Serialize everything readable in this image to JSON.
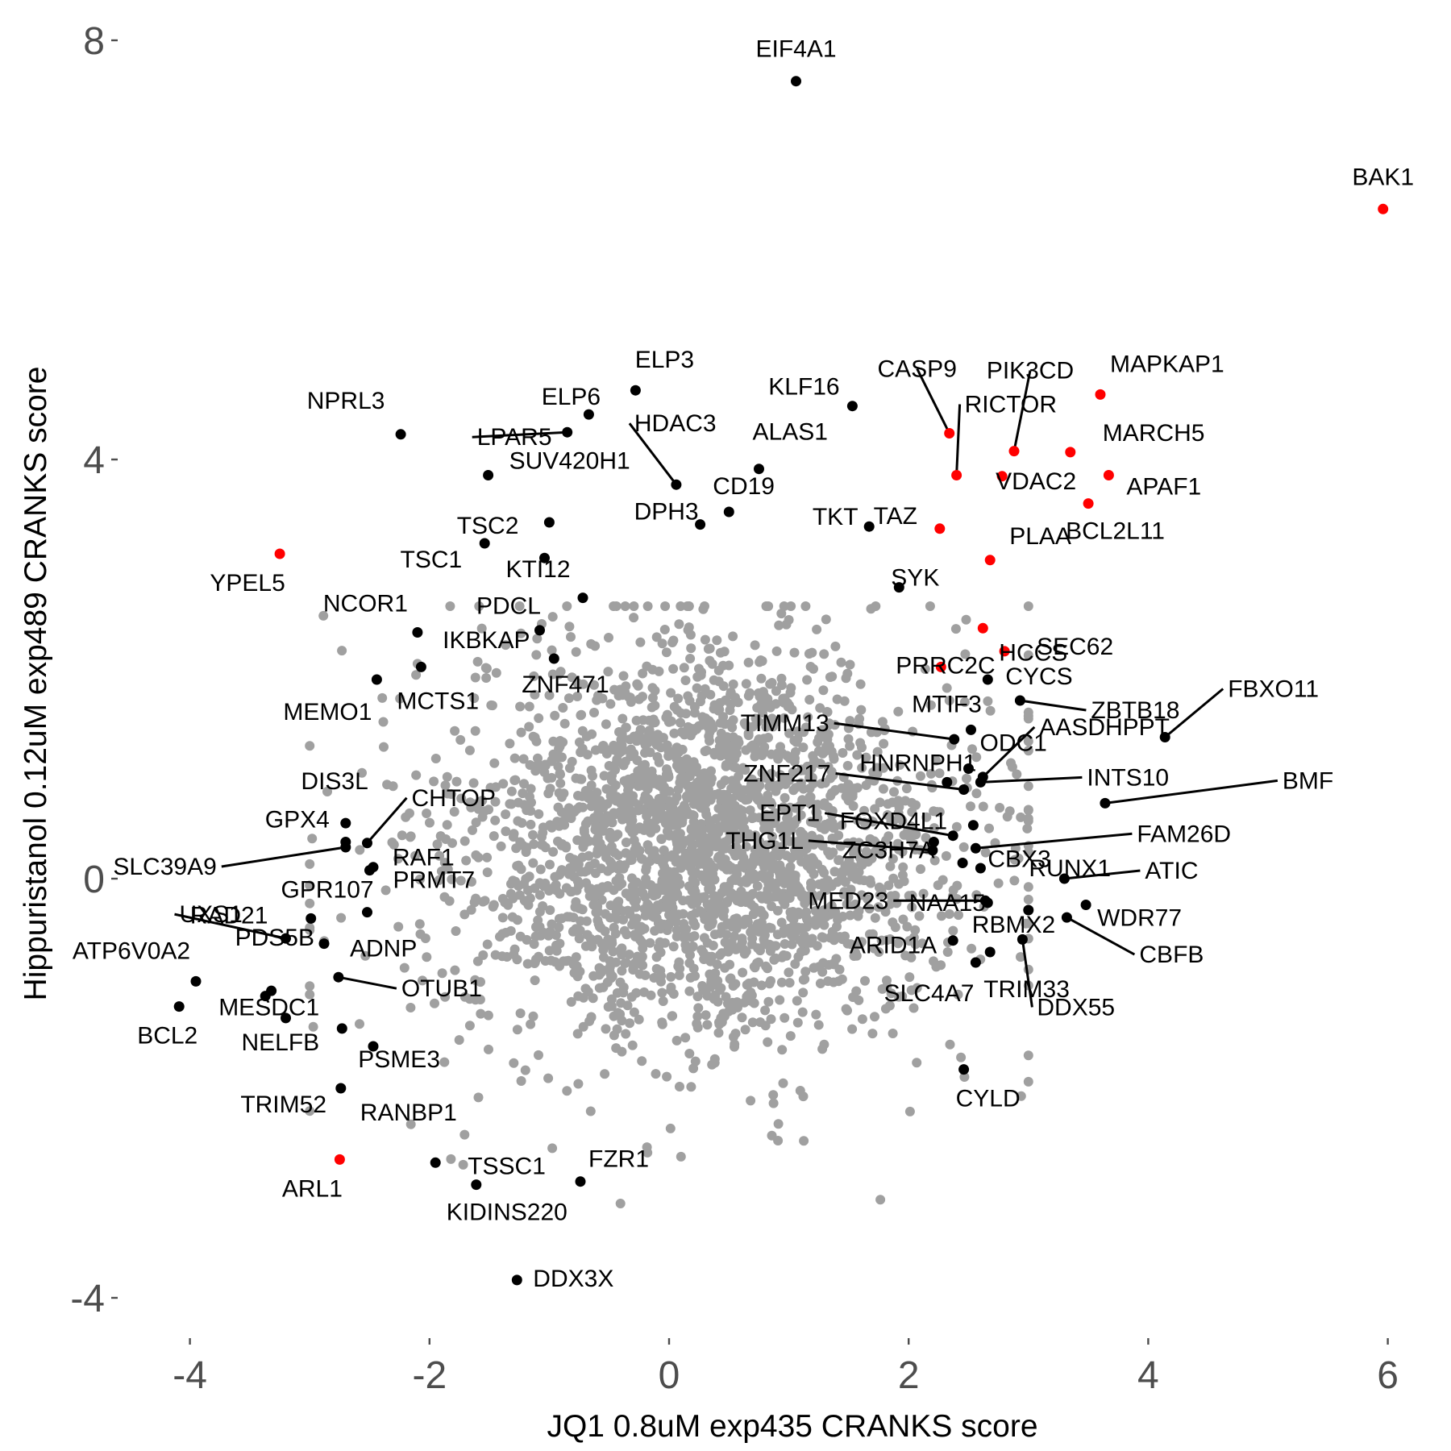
{
  "chart_data": {
    "type": "scatter",
    "title": "",
    "xlabel": "JQ1 0.8uM exp435 CRANKS score",
    "ylabel": "Hippuristanol 0.12uM exp489 CRANKS score",
    "xlim": [
      -4.55,
      6.3
    ],
    "ylim": [
      -4.4,
      8.4
    ],
    "xticks": [
      -4,
      -2,
      0,
      2,
      4,
      6
    ],
    "xtick_labels": [
      "-4",
      "-2",
      "0",
      "2",
      "4",
      "6"
    ],
    "yticks": [
      -4,
      0,
      4,
      8
    ],
    "ytick_labels": [
      "-4",
      "0",
      "4",
      "8"
    ],
    "grid": false,
    "legend": "none",
    "colors": {
      "background": "#ffffff",
      "grey_points": "#a0a0a0",
      "black_points": "#000000",
      "red_points": "#ff0000",
      "tick_text": "#4d4d4d"
    },
    "background_cloud": {
      "color": "#a0a0a0",
      "center": [
        0.3,
        0.3
      ],
      "core_radius": [
        1.6,
        1.45
      ],
      "approx_points": 2600
    },
    "highlighted_genes": [
      {
        "label": "EIF4A1",
        "x": 1.06,
        "y": 7.61,
        "color": "black"
      },
      {
        "label": "BAK1",
        "x": 5.96,
        "y": 6.39,
        "color": "red"
      },
      {
        "label": "MAPKAP1",
        "x": 3.6,
        "y": 4.62,
        "color": "red"
      },
      {
        "label": "PIK3CD",
        "x": 2.88,
        "y": 4.08,
        "color": "red"
      },
      {
        "label": "CASP9",
        "x": 2.34,
        "y": 4.25,
        "color": "red"
      },
      {
        "label": "RICTOR",
        "x": 2.4,
        "y": 3.85,
        "color": "red"
      },
      {
        "label": "MARCH5",
        "x": 3.35,
        "y": 4.07,
        "color": "red"
      },
      {
        "label": "TAZ",
        "x": 2.26,
        "y": 3.34,
        "color": "red"
      },
      {
        "label": "VDAC2",
        "x": 2.78,
        "y": 3.84,
        "color": "red"
      },
      {
        "label": "APAF1",
        "x": 3.67,
        "y": 3.85,
        "color": "red"
      },
      {
        "label": "BCL2L11",
        "x": 3.5,
        "y": 3.58,
        "color": "red"
      },
      {
        "label": "PLAA",
        "x": 2.68,
        "y": 3.04,
        "color": "red"
      },
      {
        "label": "HCCS",
        "x": 2.62,
        "y": 2.39,
        "color": "red"
      },
      {
        "label": "PRRC2C",
        "x": 2.27,
        "y": 2.02,
        "color": "red"
      },
      {
        "label": "SEC62",
        "x": 2.8,
        "y": 2.17,
        "color": "red"
      },
      {
        "label": "YPEL5",
        "x": -3.25,
        "y": 3.1,
        "color": "red"
      },
      {
        "label": "ARL1",
        "x": -2.75,
        "y": -2.68,
        "color": "red"
      },
      {
        "label": "KLF16",
        "x": 1.53,
        "y": 4.51,
        "color": "black"
      },
      {
        "label": "ELP3",
        "x": -0.28,
        "y": 4.66,
        "color": "black"
      },
      {
        "label": "ELP6",
        "x": -0.67,
        "y": 4.43,
        "color": "black"
      },
      {
        "label": "NPRL3",
        "x": -2.24,
        "y": 4.24,
        "color": "black"
      },
      {
        "label": "LPAR5",
        "x": -0.85,
        "y": 4.26,
        "color": "black"
      },
      {
        "label": "HDAC3",
        "x": 0.06,
        "y": 3.76,
        "color": "black"
      },
      {
        "label": "ALAS1",
        "x": 0.75,
        "y": 3.91,
        "color": "black"
      },
      {
        "label": "SUV420H1",
        "x": -1.51,
        "y": 3.85,
        "color": "black"
      },
      {
        "label": "CD19",
        "x": 0.5,
        "y": 3.5,
        "color": "black"
      },
      {
        "label": "TKT",
        "x": 1.67,
        "y": 3.36,
        "color": "black"
      },
      {
        "label": "TSC2",
        "x": -1.0,
        "y": 3.4,
        "color": "black"
      },
      {
        "label": "DPH3",
        "x": 0.26,
        "y": 3.38,
        "color": "black"
      },
      {
        "label": "KTI12",
        "x": -1.04,
        "y": 3.06,
        "color": "black"
      },
      {
        "label": "TSC1",
        "x": -1.54,
        "y": 3.2,
        "color": "black"
      },
      {
        "label": "SYK",
        "x": 1.92,
        "y": 2.78,
        "color": "black"
      },
      {
        "label": "PDCL",
        "x": -0.72,
        "y": 2.68,
        "color": "black"
      },
      {
        "label": "NCOR1",
        "x": -2.1,
        "y": 2.35,
        "color": "black"
      },
      {
        "label": "IKBKAP",
        "x": -1.08,
        "y": 2.37,
        "color": "black"
      },
      {
        "label": "MEMO1",
        "x": -2.44,
        "y": 1.9,
        "color": "black"
      },
      {
        "label": "MCTS1",
        "x": -2.07,
        "y": 2.02,
        "color": "black"
      },
      {
        "label": "ZNF471",
        "x": -0.96,
        "y": 2.1,
        "color": "black"
      },
      {
        "label": "CYCS",
        "x": 2.66,
        "y": 1.9,
        "color": "black"
      },
      {
        "label": "ZBTB18",
        "x": 2.93,
        "y": 1.7,
        "color": "black"
      },
      {
        "label": "FBXO11",
        "x": 4.14,
        "y": 1.35,
        "color": "black"
      },
      {
        "label": "MTIF3",
        "x": 2.52,
        "y": 1.42,
        "color": "black"
      },
      {
        "label": "TIMM13",
        "x": 2.38,
        "y": 1.33,
        "color": "black"
      },
      {
        "label": "AASDHPPT",
        "x": 2.62,
        "y": 0.97,
        "color": "black"
      },
      {
        "label": "ODC1",
        "x": 2.5,
        "y": 1.05,
        "color": "black"
      },
      {
        "label": "HNRNPH1",
        "x": 2.32,
        "y": 0.92,
        "color": "black"
      },
      {
        "label": "ZNF217",
        "x": 2.46,
        "y": 0.85,
        "color": "black"
      },
      {
        "label": "INTS10",
        "x": 2.6,
        "y": 0.92,
        "color": "black"
      },
      {
        "label": "BMF",
        "x": 3.64,
        "y": 0.72,
        "color": "black"
      },
      {
        "label": "CBX3",
        "x": 2.54,
        "y": 0.51,
        "color": "black"
      },
      {
        "label": "EPT1",
        "x": 2.37,
        "y": 0.41,
        "color": "black"
      },
      {
        "label": "FOXD4L1",
        "x": 2.21,
        "y": 0.35,
        "color": "black"
      },
      {
        "label": "FAM26D",
        "x": 2.56,
        "y": 0.29,
        "color": "black"
      },
      {
        "label": "RUNX1",
        "x": 2.6,
        "y": 0.1,
        "color": "black"
      },
      {
        "label": "THG1L",
        "x": 2.2,
        "y": 0.27,
        "color": "black"
      },
      {
        "label": "ZC3H7A",
        "x": 2.45,
        "y": 0.15,
        "color": "black"
      },
      {
        "label": "ATIC",
        "x": 3.3,
        "y": 0.0,
        "color": "black"
      },
      {
        "label": "MED23",
        "x": 2.64,
        "y": -0.21,
        "color": "black"
      },
      {
        "label": "NAA15",
        "x": 2.66,
        "y": -0.23,
        "color": "black"
      },
      {
        "label": "WDR77",
        "x": 3.48,
        "y": -0.25,
        "color": "black"
      },
      {
        "label": "RBMX2",
        "x": 3.0,
        "y": -0.3,
        "color": "black"
      },
      {
        "label": "CBFB",
        "x": 3.32,
        "y": -0.37,
        "color": "black"
      },
      {
        "label": "ARID1A",
        "x": 2.37,
        "y": -0.59,
        "color": "black"
      },
      {
        "label": "TRIM33",
        "x": 2.68,
        "y": -0.7,
        "color": "black"
      },
      {
        "label": "SLC4A7",
        "x": 2.56,
        "y": -0.8,
        "color": "black"
      },
      {
        "label": "DDX55",
        "x": 2.95,
        "y": -0.58,
        "color": "black"
      },
      {
        "label": "CYLD",
        "x": 2.46,
        "y": -1.82,
        "color": "black"
      },
      {
        "label": "DIS3L",
        "x": -2.7,
        "y": 0.53,
        "color": "black"
      },
      {
        "label": "CHTOP",
        "x": -2.52,
        "y": 0.34,
        "color": "black"
      },
      {
        "label": "GPX4",
        "x": -2.7,
        "y": 0.35,
        "color": "black"
      },
      {
        "label": "RAF1",
        "x": -2.47,
        "y": 0.11,
        "color": "black"
      },
      {
        "label": "SLC39A9",
        "x": -2.7,
        "y": 0.3,
        "color": "black"
      },
      {
        "label": "GPR107",
        "x": -2.5,
        "y": 0.08,
        "color": "black"
      },
      {
        "label": "PRMT7",
        "x": -2.52,
        "y": -0.32,
        "color": "black"
      },
      {
        "label": "UXS1",
        "x": -3.2,
        "y": -0.57,
        "color": "black"
      },
      {
        "label": "RAD21",
        "x": -2.99,
        "y": -0.38,
        "color": "black"
      },
      {
        "label": "ADNP",
        "x": -2.88,
        "y": -0.62,
        "color": "black"
      },
      {
        "label": "ATP6V0A2",
        "x": -3.95,
        "y": -0.98,
        "color": "black"
      },
      {
        "label": "PDS5B",
        "x": -3.32,
        "y": -1.07,
        "color": "black"
      },
      {
        "label": "OTUB1",
        "x": -2.76,
        "y": -0.94,
        "color": "black"
      },
      {
        "label": "MESDC1",
        "x": -3.37,
        "y": -1.12,
        "color": "black"
      },
      {
        "label": "BCL2",
        "x": -4.09,
        "y": -1.22,
        "color": "black"
      },
      {
        "label": "NELFB",
        "x": -3.2,
        "y": -1.33,
        "color": "black"
      },
      {
        "label": "PSME3",
        "x": -2.73,
        "y": -1.43,
        "color": "black"
      },
      {
        "label": "TRIM52",
        "x": -2.47,
        "y": -1.6,
        "color": "black"
      },
      {
        "label": "RANBP1",
        "x": -2.74,
        "y": -2.0,
        "color": "black"
      },
      {
        "label": "TSSC1",
        "x": -1.95,
        "y": -2.71,
        "color": "black"
      },
      {
        "label": "FZR1",
        "x": -0.74,
        "y": -2.89,
        "color": "black"
      },
      {
        "label": "KIDINS220",
        "x": -1.61,
        "y": -2.92,
        "color": "black"
      },
      {
        "label": "DDX3X",
        "x": -1.27,
        "y": -3.83,
        "color": "black"
      }
    ]
  }
}
